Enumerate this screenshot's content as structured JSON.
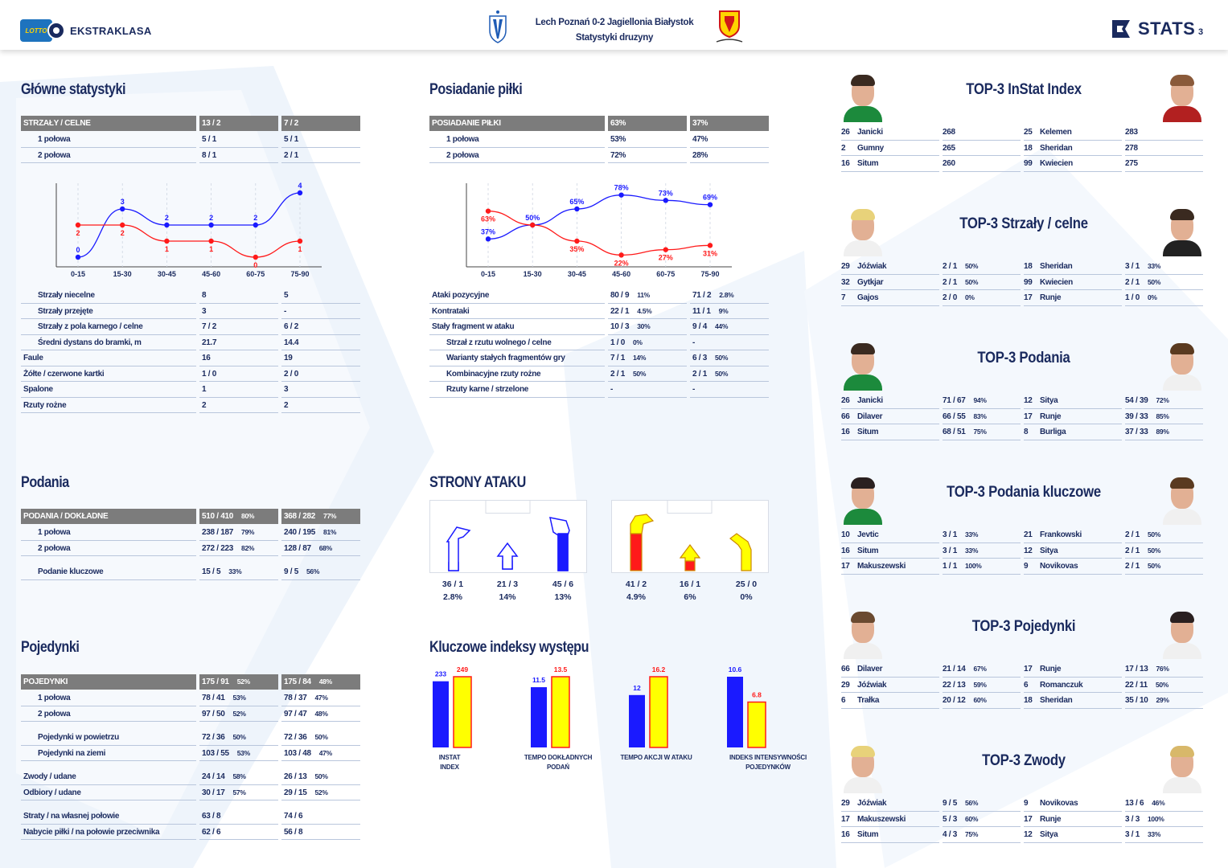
{
  "header": {
    "league_logo_text": "EKSTRAKLASA",
    "lotto_text": "LOTTO",
    "match": "Lech Poznań 0-2 Jagiellonia Białystok",
    "subtitle": "Statystyki druzyny",
    "brand": "STATS",
    "page": "3",
    "colors": {
      "home": "#1a1aff",
      "away": "#ff1a1a",
      "away_bar": "#ffff00"
    }
  },
  "main_stats": {
    "title": "Główne statystyki",
    "header": [
      "STRZAŁY / CELNE",
      "13 / 2",
      "7 / 2"
    ],
    "halves": [
      [
        "1 połowa",
        "5 / 1",
        "5 / 1"
      ],
      [
        "2 połowa",
        "8 / 1",
        "2 / 1"
      ]
    ],
    "rows": [
      [
        "Strzały niecelne",
        "8",
        "5",
        false
      ],
      [
        "Strzały przejęte",
        "3",
        "-",
        false
      ],
      [
        "Strzały z pola karnego / celne",
        "7 / 2",
        "6 / 2",
        false
      ],
      [
        "Średni dystans do bramki, m",
        "21.7",
        "14.4",
        false
      ],
      [
        "Faule",
        "16",
        "19",
        true
      ],
      [
        "Żółte / czerwone kartki",
        "1 / 0",
        "2 / 0",
        true
      ],
      [
        "Spalone",
        "1",
        "3",
        true
      ],
      [
        "Rzuty rożne",
        "2",
        "2",
        true
      ]
    ]
  },
  "chart_data": [
    {
      "type": "line",
      "categories": [
        "0-15",
        "15-30",
        "30-45",
        "45-60",
        "60-75",
        "75-90"
      ],
      "series": [
        {
          "values": [
            0,
            3,
            2,
            2,
            2,
            4
          ],
          "color": "#1a1aff"
        },
        {
          "values": [
            2,
            2,
            1,
            1,
            0,
            1
          ],
          "color": "#ff1a1a"
        }
      ],
      "point_labels": [
        [
          "0",
          "3",
          "2",
          "2",
          "2",
          "4"
        ],
        [
          "2",
          "2",
          "1",
          "1",
          "0",
          "1"
        ]
      ],
      "ylim": [
        0,
        4
      ]
    },
    {
      "type": "line",
      "categories": [
        "0-15",
        "15-30",
        "30-45",
        "45-60",
        "60-75",
        "75-90"
      ],
      "series": [
        {
          "values": [
            37,
            50,
            65,
            78,
            73,
            69
          ],
          "color": "#1a1aff"
        },
        {
          "values": [
            63,
            50,
            35,
            22,
            27,
            31
          ],
          "color": "#ff1a1a"
        }
      ],
      "point_labels": [
        [
          "37%",
          "50%",
          "65%",
          "78%",
          "73%",
          "69%"
        ],
        [
          "63%",
          "",
          "35%",
          "22%",
          "27%",
          "31%"
        ]
      ],
      "ylim": [
        20,
        80
      ]
    },
    {
      "type": "bar",
      "categories": [
        "INSTAT INDEX",
        "TEMPO DOKŁADNYCH PODAŃ",
        "TEMPO AKCJI W ATAKU",
        "INDEKS INTENSYWNOŚCI POJEDYNKÓW"
      ],
      "series": [
        {
          "values": [
            233,
            11.5,
            12,
            10.6
          ],
          "color": "#1a1aff"
        },
        {
          "values": [
            249,
            13.5,
            16.2,
            6.8
          ],
          "color": "#ffff00"
        }
      ],
      "value_labels": [
        [
          "233",
          "11.5",
          "12",
          "10.6"
        ],
        [
          "249",
          "13.5",
          "16.2",
          "6.8"
        ]
      ]
    }
  ],
  "possession": {
    "title": "Posiadanie piłki",
    "header": [
      "POSIADANIE PIŁKI",
      "63%",
      "37%"
    ],
    "halves": [
      [
        "1 połowa",
        "53%",
        "47%"
      ],
      [
        "2 połowa",
        "72%",
        "28%"
      ]
    ],
    "rows": [
      [
        "Ataki pozycyjne",
        "80 / 9",
        "11%",
        "71 / 2",
        "2.8%",
        false
      ],
      [
        "Kontrataki",
        "22 / 1",
        "4.5%",
        "11 / 1",
        "9%",
        false
      ],
      [
        "Stały fragment w ataku",
        "10 / 3",
        "30%",
        "9 / 4",
        "44%",
        false
      ],
      [
        "Strzał z rzutu wolnego / celne",
        "1 / 0",
        "0%",
        "-",
        "",
        true
      ],
      [
        "Warianty stałych fragmentów gry",
        "7 / 1",
        "14%",
        "6 / 3",
        "50%",
        true
      ],
      [
        "Kombinacyjne rzuty rożne",
        "2 / 1",
        "50%",
        "2 / 1",
        "50%",
        true
      ],
      [
        "Rzuty karne / strzelone",
        "-",
        "",
        "-",
        "",
        true
      ]
    ]
  },
  "passes": {
    "title": "Podania",
    "header": [
      "PODANIA / DOKŁADNE",
      "510 / 410",
      "80%",
      "368 / 282",
      "77%"
    ],
    "rows": [
      [
        "1 połowa",
        "238 / 187",
        "79%",
        "240 / 195",
        "81%"
      ],
      [
        "2 połowa",
        "272 / 223",
        "82%",
        "128 / 87",
        "68%"
      ],
      [
        "Podanie kluczowe",
        "15 / 5",
        "33%",
        "9 / 5",
        "56%"
      ]
    ]
  },
  "duels": {
    "title": "Pojedynki",
    "header": [
      "POJEDYNKI",
      "175 / 91",
      "52%",
      "175 / 84",
      "48%"
    ],
    "groups": [
      [
        [
          "1 połowa",
          "78 / 41",
          "53%",
          "78 / 37",
          "47%",
          true
        ],
        [
          "2 połowa",
          "97 / 50",
          "52%",
          "97 / 47",
          "48%",
          true
        ]
      ],
      [
        [
          "Pojedynki w powietrzu",
          "72 / 36",
          "50%",
          "72 / 36",
          "50%",
          true
        ],
        [
          "Pojedynki na ziemi",
          "103 / 55",
          "53%",
          "103 / 48",
          "47%",
          true
        ]
      ],
      [
        [
          "Zwody / udane",
          "24 / 14",
          "58%",
          "26 / 13",
          "50%",
          false
        ],
        [
          "Odbiory / udane",
          "30 / 17",
          "57%",
          "29 / 15",
          "52%",
          false
        ]
      ],
      [
        [
          "Straty / na własnej połowie",
          "63 / 8",
          "",
          "74 / 6",
          "",
          false
        ],
        [
          "Nabycie piłki / na połowie przeciwnika",
          "62 / 6",
          "",
          "56 / 8",
          "",
          false
        ]
      ]
    ]
  },
  "attack_sides": {
    "title": "STRONY ATAKU",
    "home": [
      [
        "36 / 1",
        "2.8%"
      ],
      [
        "21 / 3",
        "14%"
      ],
      [
        "45 / 6",
        "13%"
      ]
    ],
    "away": [
      [
        "41 / 2",
        "4.9%"
      ],
      [
        "16 / 1",
        "6%"
      ],
      [
        "25 / 0",
        "0%"
      ]
    ]
  },
  "key_index": {
    "title": "Kluczowe indeksy występu"
  },
  "tops": [
    {
      "title": "TOP-3 InStat Index",
      "rows": [
        [
          "26",
          "Janicki",
          "268",
          "",
          "25",
          "Kelemen",
          "283",
          ""
        ],
        [
          "2",
          "Gumny",
          "265",
          "",
          "18",
          "Sheridan",
          "278",
          ""
        ],
        [
          "16",
          "Situm",
          "260",
          "",
          "99",
          "Kwiecien",
          "275",
          ""
        ]
      ]
    },
    {
      "title": "TOP-3 Strzały / celne",
      "rows": [
        [
          "29",
          "Jóźwiak",
          "2 / 1",
          "50%",
          "18",
          "Sheridan",
          "3 / 1",
          "33%"
        ],
        [
          "32",
          "Gytkjar",
          "2 / 1",
          "50%",
          "99",
          "Kwiecien",
          "2 / 1",
          "50%"
        ],
        [
          "7",
          "Gajos",
          "2 / 0",
          "0%",
          "17",
          "Runje",
          "1 / 0",
          "0%"
        ]
      ]
    },
    {
      "title": "TOP-3 Podania",
      "rows": [
        [
          "26",
          "Janicki",
          "71 / 67",
          "94%",
          "12",
          "Sitya",
          "54 / 39",
          "72%"
        ],
        [
          "66",
          "Dilaver",
          "66 / 55",
          "83%",
          "17",
          "Runje",
          "39 / 33",
          "85%"
        ],
        [
          "16",
          "Situm",
          "68 / 51",
          "75%",
          "8",
          "Burliga",
          "37 / 33",
          "89%"
        ]
      ]
    },
    {
      "title": "TOP-3 Podania kluczowe",
      "rows": [
        [
          "10",
          "Jevtic",
          "3 / 1",
          "33%",
          "21",
          "Frankowski",
          "2 / 1",
          "50%"
        ],
        [
          "16",
          "Situm",
          "3 / 1",
          "33%",
          "12",
          "Sitya",
          "2 / 1",
          "50%"
        ],
        [
          "17",
          "Makuszewski",
          "1 / 1",
          "100%",
          "9",
          "Novikovas",
          "2 / 1",
          "50%"
        ]
      ]
    },
    {
      "title": "TOP-3 Pojedynki",
      "rows": [
        [
          "66",
          "Dilaver",
          "21 / 14",
          "67%",
          "17",
          "Runje",
          "17 / 13",
          "76%"
        ],
        [
          "29",
          "Jóźwiak",
          "22 / 13",
          "59%",
          "6",
          "Romanczuk",
          "22 / 11",
          "50%"
        ],
        [
          "6",
          "Trałka",
          "20 / 12",
          "60%",
          "18",
          "Sheridan",
          "35 / 10",
          "29%"
        ]
      ]
    },
    {
      "title": "TOP-3 Zwody",
      "rows": [
        [
          "29",
          "Jóźwiak",
          "9 / 5",
          "56%",
          "9",
          "Novikovas",
          "13 / 6",
          "46%"
        ],
        [
          "17",
          "Makuszewski",
          "5 / 3",
          "60%",
          "17",
          "Runje",
          "3 / 3",
          "100%"
        ],
        [
          "16",
          "Situm",
          "4 / 3",
          "75%",
          "12",
          "Sitya",
          "3 / 1",
          "33%"
        ]
      ]
    }
  ]
}
